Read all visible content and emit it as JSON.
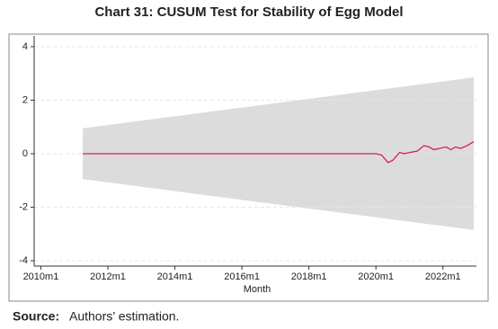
{
  "chart_data": {
    "type": "line",
    "title": "Chart 31: CUSUM Test for Stability of Egg Model",
    "x_label": "Month",
    "source_label": "Source:",
    "source_text": "Authors’ estimation.",
    "xlim": [
      2009.8,
      2023.0
    ],
    "ylim": [
      -4.2,
      4.4
    ],
    "xticks": [
      {
        "value": 2010,
        "label": "2010m1"
      },
      {
        "value": 2012,
        "label": "2012m1"
      },
      {
        "value": 2014,
        "label": "2014m1"
      },
      {
        "value": 2016,
        "label": "2016m1"
      },
      {
        "value": 2018,
        "label": "2018m1"
      },
      {
        "value": 2020,
        "label": "2020m1"
      },
      {
        "value": 2022,
        "label": "2022m1"
      }
    ],
    "yticks": [
      -4,
      -2,
      0,
      2,
      4
    ],
    "grid": true,
    "band": {
      "color": "#dcdcdc",
      "x": [
        2011.25,
        2022.92
      ],
      "upper": [
        0.95,
        2.85
      ],
      "lower": [
        -0.95,
        -2.85
      ]
    },
    "series": [
      {
        "color": "#d6204f",
        "x": [
          2011.25,
          2020.0,
          2020.17,
          2020.36,
          2020.5,
          2020.71,
          2020.84,
          2021.03,
          2021.24,
          2021.43,
          2021.59,
          2021.73,
          2021.91,
          2022.1,
          2022.24,
          2022.37,
          2022.53,
          2022.72,
          2022.92
        ],
        "values": [
          0,
          0,
          -0.05,
          -0.33,
          -0.25,
          0.05,
          0.0,
          0.05,
          0.1,
          0.3,
          0.25,
          0.15,
          0.2,
          0.25,
          0.15,
          0.25,
          0.2,
          0.3,
          0.45
        ]
      }
    ]
  }
}
